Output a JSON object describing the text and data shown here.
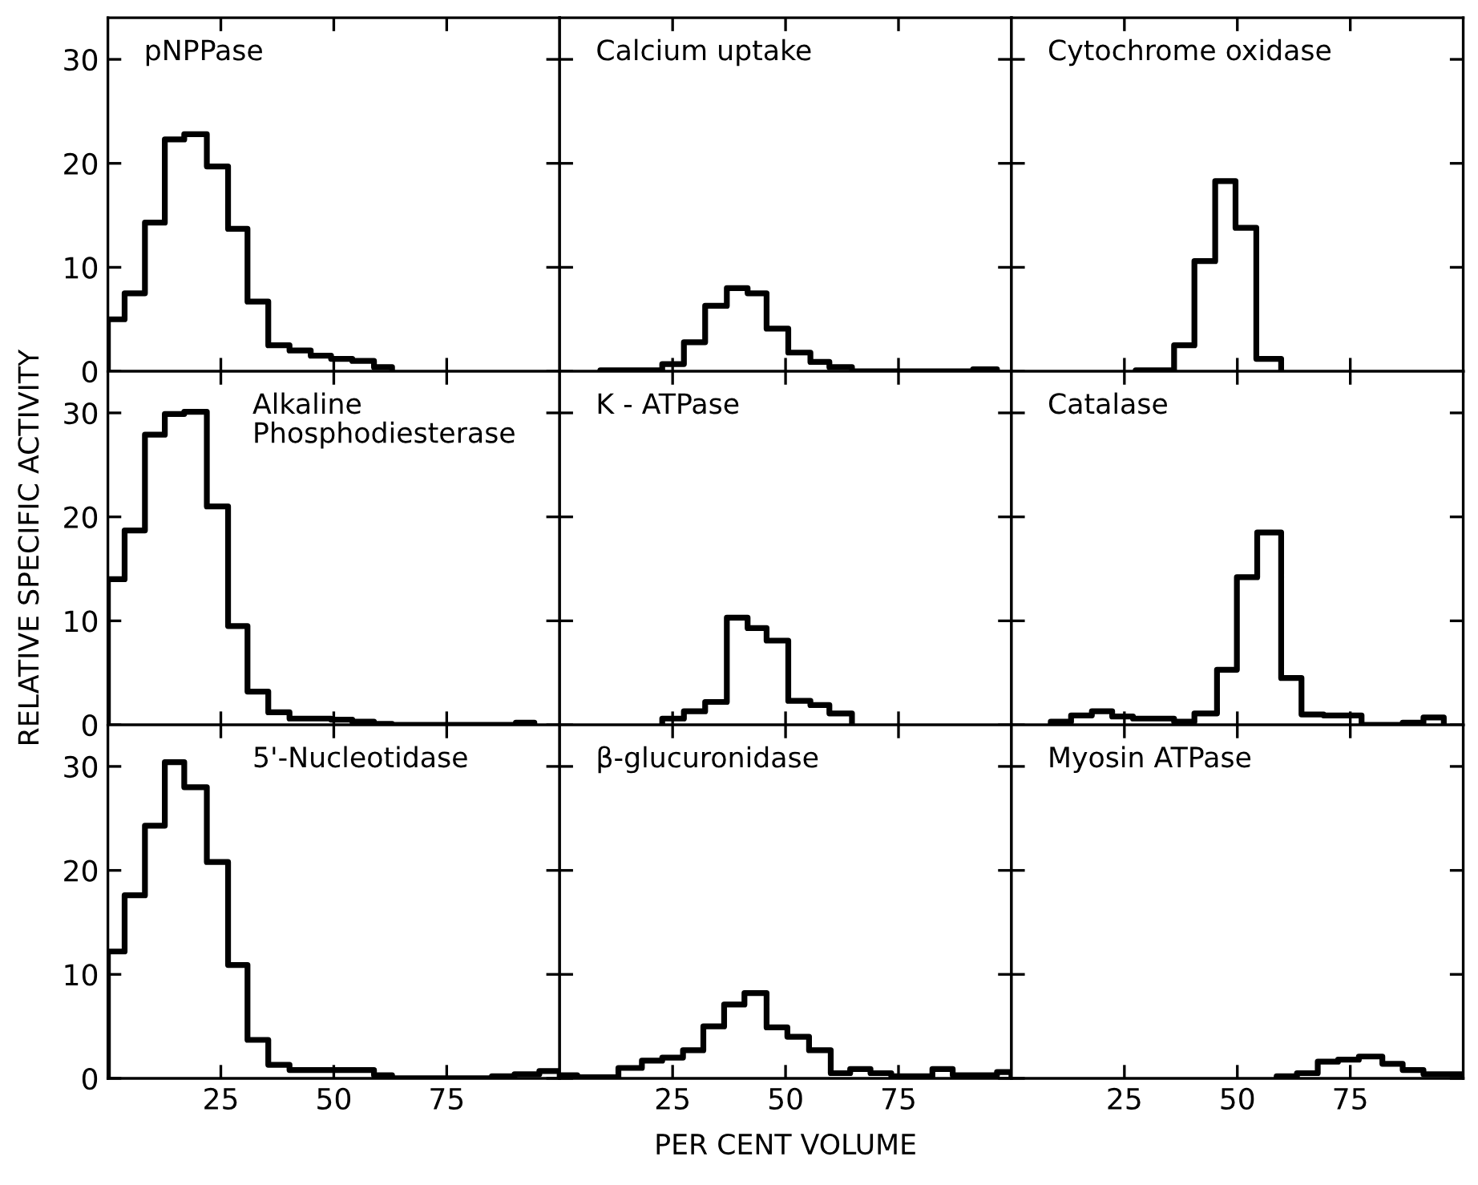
{
  "chart_data": [
    {
      "type": "histogram",
      "title": "pNPPase",
      "bins": [
        0,
        3.7,
        8.2,
        12.6,
        16.9,
        21.9,
        26.6,
        30.9,
        35.5,
        40.2,
        44.9,
        49.4,
        54.1,
        58.9,
        62.9
      ],
      "values": [
        5,
        7.5,
        14.3,
        22.3,
        22.8,
        19.7,
        13.7,
        6.7,
        2.5,
        2,
        1.5,
        1.2,
        1,
        0.4
      ],
      "color": "#000000",
      "xlim": [
        0,
        100
      ],
      "xticks": [
        {
          "value": 25,
          "label": null
        },
        {
          "value": 50,
          "label": null
        },
        {
          "value": 75,
          "label": null
        }
      ],
      "ylim": [
        0,
        34
      ],
      "yticks": [
        0,
        10,
        20,
        30
      ],
      "tick_labels": "y"
    },
    {
      "type": "histogram",
      "title": "Calcium uptake",
      "bins": [
        9,
        22.7,
        27.5,
        32.2,
        37,
        41.6,
        45.8,
        50.6,
        55.5,
        59.7,
        64.7,
        91.5,
        96.8
      ],
      "values": [
        0.1,
        0.7,
        2.8,
        6.3,
        8,
        7.5,
        4.1,
        1.8,
        0.9,
        0.4,
        0,
        0.2
      ],
      "color": "#000000",
      "xlim": [
        0,
        100
      ],
      "xticks": [
        {
          "value": 25,
          "label": null
        },
        {
          "value": 50,
          "label": null
        },
        {
          "value": 75,
          "label": null
        }
      ],
      "ylim": [
        0,
        34
      ],
      "yticks": [
        {
          "value": 0,
          "label": null
        },
        {
          "value": 10,
          "label": null
        },
        {
          "value": 20,
          "label": null
        },
        {
          "value": 30,
          "label": null
        }
      ],
      "tick_labels": false
    },
    {
      "type": "histogram",
      "title": "Cytochrome oxidase",
      "bins": [
        27.5,
        36,
        40.5,
        45.1,
        49.6,
        54.2,
        59.7
      ],
      "values": [
        0.1,
        2.5,
        10.6,
        18.3,
        13.8,
        1.2
      ],
      "color": "#000000",
      "xlim": [
        0,
        100
      ],
      "xticks": [
        {
          "value": 25,
          "label": null
        },
        {
          "value": 50,
          "label": null
        },
        {
          "value": 75,
          "label": null
        }
      ],
      "ylim": [
        0,
        34
      ],
      "yticks": [
        {
          "value": 0,
          "label": null
        },
        {
          "value": 10,
          "label": null
        },
        {
          "value": 20,
          "label": null
        },
        {
          "value": 30,
          "label": null
        }
      ],
      "tick_labels": false
    },
    {
      "type": "histogram",
      "title": "Alkaline\nPhosphodiesterase",
      "bins": [
        0,
        3.7,
        8.2,
        12.6,
        16.9,
        21.9,
        26.6,
        30.9,
        35.5,
        40.2,
        44.9,
        49.4,
        54.1,
        58.9,
        62.9,
        90.3,
        94.4
      ],
      "values": [
        14,
        18.7,
        27.9,
        29.9,
        30.1,
        21,
        9.5,
        3.2,
        1.2,
        0.6,
        0.6,
        0.5,
        0.3,
        0.1,
        0,
        0.2
      ],
      "color": "#000000",
      "xlim": [
        0,
        100
      ],
      "xticks": [
        {
          "value": 25,
          "label": null
        },
        {
          "value": 50,
          "label": null
        },
        {
          "value": 75,
          "label": null
        }
      ],
      "ylim": [
        0,
        34
      ],
      "yticks": [
        0,
        10,
        20,
        30
      ],
      "ylabel": "RELATIVE SPECIFIC ACTIVITY",
      "tick_labels": "y"
    },
    {
      "type": "histogram",
      "title": "K - ATPase",
      "bins": [
        22.7,
        27.5,
        32.2,
        37,
        41.6,
        45.8,
        50.6,
        55.5,
        59.7,
        64.7
      ],
      "values": [
        0.6,
        1.3,
        2.2,
        10.3,
        9.3,
        8.1,
        2.3,
        1.9,
        1.1
      ],
      "color": "#000000",
      "xlim": [
        0,
        100
      ],
      "xticks": [
        {
          "value": 25,
          "label": null
        },
        {
          "value": 50,
          "label": null
        },
        {
          "value": 75,
          "label": null
        }
      ],
      "ylim": [
        0,
        34
      ],
      "yticks": [
        {
          "value": 0,
          "label": null
        },
        {
          "value": 10,
          "label": null
        },
        {
          "value": 20,
          "label": null
        },
        {
          "value": 30,
          "label": null
        }
      ],
      "tick_labels": false
    },
    {
      "type": "histogram",
      "title": "Catalase",
      "bins": [
        8.7,
        13.2,
        17.8,
        22.3,
        26.9,
        31.4,
        36,
        40.5,
        45.5,
        49.9,
        54.4,
        59.7,
        64.2,
        69.1,
        77.5,
        86.6,
        91.2,
        95.7
      ],
      "values": [
        0.3,
        0.9,
        1.3,
        0.8,
        0.6,
        0.6,
        0.3,
        1.1,
        5.3,
        14.2,
        18.5,
        4.5,
        1,
        0.9,
        0,
        0.2,
        0.7
      ],
      "color": "#000000",
      "xlim": [
        0,
        100
      ],
      "xticks": [
        {
          "value": 25,
          "label": null
        },
        {
          "value": 50,
          "label": null
        },
        {
          "value": 75,
          "label": null
        }
      ],
      "ylim": [
        0,
        34
      ],
      "yticks": [
        {
          "value": 0,
          "label": null
        },
        {
          "value": 10,
          "label": null
        },
        {
          "value": 20,
          "label": null
        },
        {
          "value": 30,
          "label": null
        }
      ],
      "tick_labels": false
    },
    {
      "type": "histogram",
      "title": "5'-Nucleotidase",
      "bins": [
        0,
        3.7,
        8.2,
        12.6,
        16.9,
        21.9,
        26.6,
        30.9,
        35.5,
        40.2,
        44.9,
        49.4,
        54.1,
        58.9,
        62.9,
        85,
        90,
        95.5,
        100
      ],
      "values": [
        12.2,
        17.6,
        24.3,
        30.4,
        28,
        20.8,
        10.9,
        3.7,
        1.3,
        0.8,
        0.8,
        0.8,
        0.8,
        0.3,
        0,
        0.2,
        0.4,
        0.7
      ],
      "color": "#000000",
      "xlim": [
        0,
        100
      ],
      "xticks": [
        25,
        50,
        75
      ],
      "ylim": [
        0,
        34
      ],
      "yticks": [
        0,
        10,
        20,
        30
      ]
    },
    {
      "type": "histogram",
      "title": "β-glucuronidase",
      "bins": [
        0,
        3.9,
        13,
        18.2,
        22.7,
        27.3,
        31.8,
        36.4,
        40.9,
        45.8,
        50.4,
        55.2,
        60,
        64.3,
        68.8,
        73.4,
        82.5,
        87,
        96.8,
        100
      ],
      "values": [
        0.3,
        0.1,
        1,
        1.7,
        2,
        2.7,
        5,
        7.1,
        8.2,
        4.9,
        4,
        2.7,
        0.5,
        0.9,
        0.5,
        0.2,
        0.9,
        0.3,
        0.6
      ],
      "color": "#000000",
      "xlim": [
        0,
        100
      ],
      "xticks": [
        25,
        50,
        75
      ],
      "ylim": [
        0,
        34
      ],
      "yticks": [
        {
          "value": 0,
          "label": null
        },
        {
          "value": 10,
          "label": null
        },
        {
          "value": 20,
          "label": null
        },
        {
          "value": 30,
          "label": null
        }
      ],
      "xlabel": "PER CENT VOLUME",
      "tick_labels": "x"
    },
    {
      "type": "histogram",
      "title": "Myosin ATPase",
      "bins": [
        58.7,
        63.2,
        67.8,
        72.3,
        76.9,
        82.1,
        86.6,
        91.2,
        100
      ],
      "values": [
        0.2,
        0.5,
        1.6,
        1.8,
        2.1,
        1.4,
        0.8,
        0.4
      ],
      "color": "#000000",
      "xlim": [
        0,
        100
      ],
      "xticks": [
        25,
        50,
        75
      ],
      "ylim": [
        0,
        34
      ],
      "yticks": [
        {
          "value": 0,
          "label": null
        },
        {
          "value": 10,
          "label": null
        },
        {
          "value": 20,
          "label": null
        },
        {
          "value": 30,
          "label": null
        }
      ],
      "tick_labels": "x"
    }
  ]
}
